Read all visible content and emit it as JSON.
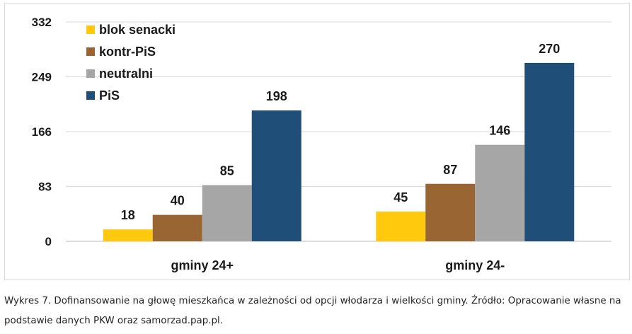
{
  "chart_data": {
    "type": "bar",
    "title": "",
    "xlabel": "",
    "ylabel": "",
    "categories": [
      "gminy 24+",
      "gminy 24-"
    ],
    "series": [
      {
        "name": "blok senacki",
        "color": "#FFC90E",
        "values": [
          18,
          45
        ]
      },
      {
        "name": "kontr-PiS",
        "color": "#996633",
        "values": [
          40,
          87
        ]
      },
      {
        "name": "neutralni",
        "color": "#A6A6A6",
        "values": [
          85,
          146
        ]
      },
      {
        "name": "PiS",
        "color": "#1F4E79",
        "values": [
          198,
          270
        ]
      }
    ],
    "yticks": [
      0,
      83,
      166,
      249,
      332
    ],
    "ylim": [
      0,
      332
    ],
    "grid": true,
    "legend_position": "top-left"
  },
  "caption": {
    "line1": "Wykres 7. Dofinansowanie na głowę mieszkańca w zależności od opcji włodarza i wielkości gminy. Źródło: Opracowanie własne na",
    "line2": "podstawie danych PKW oraz samorzad.pap.pl."
  }
}
